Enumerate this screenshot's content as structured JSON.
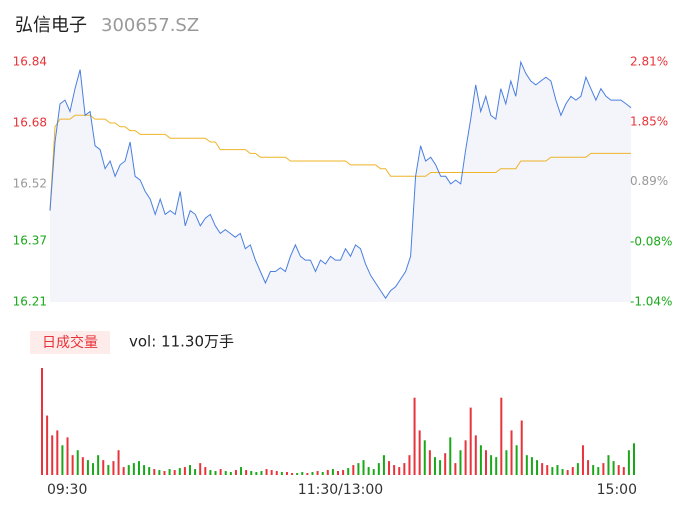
{
  "chart_data": {
    "type": "intraday",
    "title": "弘信电子",
    "subtitle": "300657.SZ",
    "ylim": [
      16.21,
      16.84
    ],
    "yticks": [
      16.84,
      16.68,
      16.52,
      16.37,
      16.21
    ],
    "ytick_colors": [
      "#e8333a",
      "#e8333a",
      "#999999",
      "#1aa81a",
      "#1aa81a"
    ],
    "y2lim": [
      -1.04,
      2.81
    ],
    "y2ticks": [
      {
        "value": 2.81,
        "label": "2.81%"
      },
      {
        "value": 1.85,
        "label": "1.85%"
      },
      {
        "value": 0.89,
        "label": "0.89%"
      },
      {
        "value": -0.08,
        "label": "-0.08%"
      },
      {
        "value": -1.04,
        "label": "-1.04%"
      }
    ],
    "xticks": [
      {
        "value": 0,
        "label": "09:30"
      },
      {
        "value": 58,
        "label": "11:30/13:00"
      },
      {
        "value": 116,
        "label": "15:00"
      }
    ],
    "series": [
      {
        "color": "#4a7fe0",
        "values": [
          16.45,
          16.63,
          16.73,
          16.74,
          16.71,
          16.77,
          16.82,
          16.7,
          16.71,
          16.62,
          16.61,
          16.56,
          16.58,
          16.54,
          16.57,
          16.58,
          16.63,
          16.54,
          16.53,
          16.5,
          16.48,
          16.44,
          16.48,
          16.44,
          16.45,
          16.44,
          16.5,
          16.41,
          16.45,
          16.44,
          16.41,
          16.43,
          16.44,
          16.41,
          16.39,
          16.4,
          16.39,
          16.38,
          16.39,
          16.35,
          16.36,
          16.32,
          16.29,
          16.26,
          16.29,
          16.29,
          16.3,
          16.29,
          16.33,
          16.36,
          16.33,
          16.32,
          16.32,
          16.29,
          16.32,
          16.31,
          16.33,
          16.32,
          16.32,
          16.35,
          16.33,
          16.36,
          16.35,
          16.31,
          16.28,
          16.26,
          16.24,
          16.22,
          16.24,
          16.25,
          16.27,
          16.29,
          16.33,
          16.54,
          16.62,
          16.58,
          16.59,
          16.57,
          16.54,
          16.54,
          16.52,
          16.53,
          16.52,
          16.61,
          16.69,
          16.78,
          16.71,
          16.75,
          16.7,
          16.69,
          16.77,
          16.73,
          16.79,
          16.75,
          16.84,
          16.81,
          16.79,
          16.78,
          16.79,
          16.8,
          16.79,
          16.74,
          16.7,
          16.73,
          16.75,
          16.74,
          16.75,
          16.8,
          16.77,
          16.74,
          16.77,
          16.75,
          16.74,
          16.74,
          16.74,
          16.73,
          16.72
        ]
      },
      {
        "color": "#f0b429",
        "values": [
          16.45,
          16.67,
          16.69,
          16.69,
          16.69,
          16.7,
          16.7,
          16.7,
          16.7,
          16.69,
          16.69,
          16.69,
          16.68,
          16.68,
          16.67,
          16.67,
          16.66,
          16.66,
          16.65,
          16.65,
          16.65,
          16.65,
          16.65,
          16.65,
          16.64,
          16.64,
          16.64,
          16.64,
          16.64,
          16.64,
          16.64,
          16.64,
          16.63,
          16.63,
          16.61,
          16.61,
          16.61,
          16.61,
          16.61,
          16.61,
          16.6,
          16.6,
          16.59,
          16.59,
          16.59,
          16.59,
          16.59,
          16.59,
          16.58,
          16.58,
          16.58,
          16.58,
          16.58,
          16.58,
          16.58,
          16.58,
          16.58,
          16.58,
          16.58,
          16.58,
          16.57,
          16.57,
          16.57,
          16.57,
          16.57,
          16.57,
          16.56,
          16.56,
          16.54,
          16.54,
          16.54,
          16.54,
          16.54,
          16.54,
          16.54,
          16.54,
          16.55,
          16.55,
          16.55,
          16.55,
          16.55,
          16.55,
          16.55,
          16.55,
          16.55,
          16.55,
          16.55,
          16.55,
          16.55,
          16.55,
          16.56,
          16.56,
          16.56,
          16.56,
          16.58,
          16.58,
          16.58,
          16.58,
          16.58,
          16.58,
          16.59,
          16.59,
          16.59,
          16.59,
          16.59,
          16.59,
          16.59,
          16.59,
          16.6,
          16.6,
          16.6,
          16.6,
          16.6,
          16.6,
          16.6,
          16.6,
          16.6
        ]
      }
    ],
    "volume_badge": "日成交量",
    "volume_label": "vol: 11.30万手",
    "volume_ylim": [
      0,
      110
    ],
    "up_color": "#e8333a",
    "down_color": "#1aa81a",
    "volume": [
      108,
      60,
      40,
      45,
      30,
      38,
      20,
      25,
      18,
      15,
      12,
      20,
      15,
      10,
      14,
      25,
      8,
      10,
      12,
      14,
      10,
      8,
      6,
      5,
      4,
      6,
      5,
      7,
      8,
      10,
      6,
      12,
      8,
      5,
      4,
      6,
      4,
      3,
      5,
      8,
      5,
      4,
      3,
      4,
      6,
      5,
      4,
      3,
      3,
      2,
      2,
      3,
      2,
      3,
      4,
      3,
      5,
      6,
      4,
      5,
      7,
      10,
      12,
      15,
      8,
      6,
      12,
      20,
      14,
      10,
      8,
      12,
      20,
      78,
      45,
      35,
      25,
      18,
      15,
      22,
      38,
      12,
      25,
      35,
      68,
      40,
      30,
      25,
      20,
      18,
      78,
      25,
      45,
      30,
      55,
      20,
      18,
      15,
      12,
      10,
      8,
      10,
      6,
      5,
      8,
      12,
      30,
      15,
      10,
      8,
      12,
      20,
      14,
      10,
      8,
      25,
      32
    ],
    "volume_up": [
      true,
      true,
      true,
      true,
      false,
      true,
      true,
      false,
      true,
      false,
      false,
      false,
      true,
      false,
      true,
      true,
      true,
      false,
      false,
      false,
      false,
      false,
      true,
      false,
      true,
      false,
      true,
      false,
      true,
      false,
      false,
      true,
      true,
      false,
      false,
      true,
      false,
      false,
      true,
      false,
      true,
      false,
      false,
      false,
      true,
      true,
      true,
      false,
      true,
      true,
      false,
      false,
      true,
      false,
      true,
      false,
      true,
      false,
      true,
      true,
      false,
      true,
      false,
      false,
      false,
      false,
      false,
      false,
      true,
      true,
      true,
      true,
      true,
      true,
      true,
      false,
      true,
      false,
      false,
      true,
      false,
      true,
      false,
      true,
      true,
      true,
      false,
      true,
      false,
      false,
      true,
      false,
      true,
      false,
      true,
      false,
      false,
      false,
      true,
      true,
      false,
      false,
      false,
      true,
      true,
      false,
      true,
      true,
      false,
      false,
      true,
      false,
      false,
      true,
      true,
      false,
      false
    ]
  }
}
